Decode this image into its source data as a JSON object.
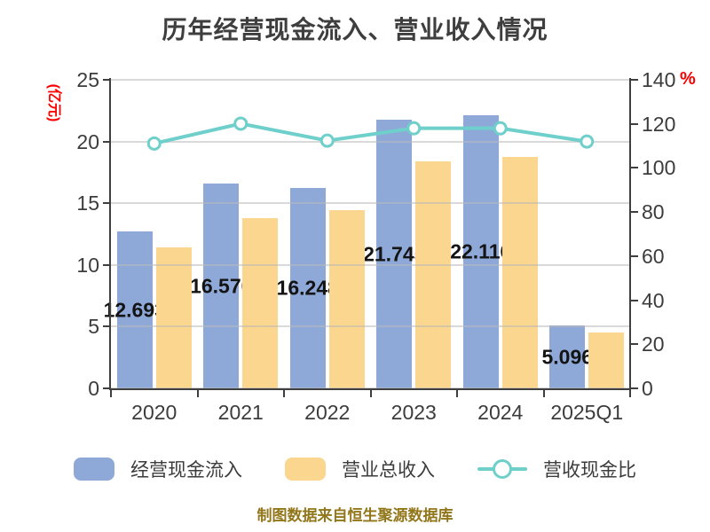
{
  "title": "历年经营现金流入、营业收入情况",
  "footer": "制图数据来自恒生聚源数据库",
  "chart_data": {
    "type": "bar",
    "title": "历年经营现金流入、营业收入情况",
    "categories": [
      "2020",
      "2021",
      "2022",
      "2023",
      "2024",
      "2025Q1"
    ],
    "series": [
      {
        "name": "经营现金流入",
        "type": "bar",
        "axis": "left",
        "color": "#8EA9D8",
        "values": [
          12.693,
          16.57,
          16.248,
          21.745,
          22.116,
          5.096
        ],
        "value_labels": [
          "12.693",
          "16.570",
          "16.248",
          "21.745",
          "22.116",
          "5.096"
        ]
      },
      {
        "name": "营业总收入",
        "type": "bar",
        "axis": "left",
        "color": "#FAD68F",
        "values": [
          11.43,
          13.8,
          14.45,
          18.42,
          18.74,
          4.55
        ]
      },
      {
        "name": "营收现金比",
        "type": "line",
        "axis": "right",
        "color": "#6FCFCB",
        "marker": "white-circle",
        "values": [
          111.1,
          120.1,
          112.4,
          118.0,
          118.0,
          112.0
        ]
      }
    ],
    "left_axis": {
      "unit": "(亿元)",
      "unit_color": "#FE0000",
      "min": 0,
      "max": 25,
      "ticks": [
        0,
        5,
        10,
        15,
        20,
        25
      ]
    },
    "right_axis": {
      "unit": "%",
      "unit_color": "#FE0000",
      "min": 0,
      "max": 140,
      "ticks": [
        0,
        20,
        40,
        60,
        80,
        100,
        120,
        140
      ]
    },
    "grid": true,
    "legend_position": "bottom"
  },
  "legend": {
    "items": [
      {
        "label": "经营现金流入",
        "swatch": "bar",
        "color": "#8EA9D8"
      },
      {
        "label": "营业总收入",
        "swatch": "bar",
        "color": "#FAD68F"
      },
      {
        "label": "营收现金比",
        "swatch": "line-marker",
        "color": "#6FCFCB"
      }
    ]
  },
  "colors": {
    "title_text": "#3E3E3E",
    "axis_text": "#3C3C3C",
    "axis_line": "#3F3F3F",
    "gridline": "#B9B9B9",
    "value_label_text": "#141414",
    "footer_text": "#92761A",
    "background": "#FFFFFF"
  }
}
